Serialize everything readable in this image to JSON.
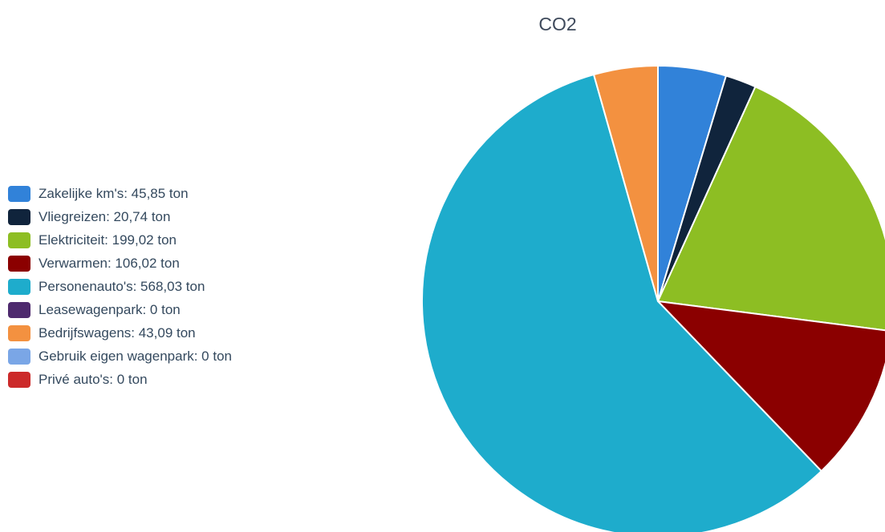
{
  "chart_data": {
    "type": "pie",
    "title": "CO2",
    "unit": "ton",
    "legend_position": "left",
    "slices": [
      {
        "label": "Zakelijke km's",
        "value": 45.85,
        "display": "45,85",
        "color": "#3182d9"
      },
      {
        "label": "Vliegreizen",
        "value": 20.74,
        "display": "20,74",
        "color": "#10243c"
      },
      {
        "label": "Elektriciteit",
        "value": 199.02,
        "display": "199,02",
        "color": "#8dbe23"
      },
      {
        "label": "Verwarmen",
        "value": 106.02,
        "display": "106,02",
        "color": "#8b0000"
      },
      {
        "label": "Personenauto's",
        "value": 568.03,
        "display": "568,03",
        "color": "#1eaccc"
      },
      {
        "label": "Leasewagenpark",
        "value": 0,
        "display": "0",
        "color": "#4e2a6e"
      },
      {
        "label": "Bedrijfswagens",
        "value": 43.09,
        "display": "43,09",
        "color": "#f39140"
      },
      {
        "label": "Gebruik eigen wagenpark",
        "value": 0,
        "display": "0",
        "color": "#7aa6e6"
      },
      {
        "label": "Privé auto's",
        "value": 0,
        "display": "0",
        "color": "#cc2a2a"
      }
    ]
  }
}
